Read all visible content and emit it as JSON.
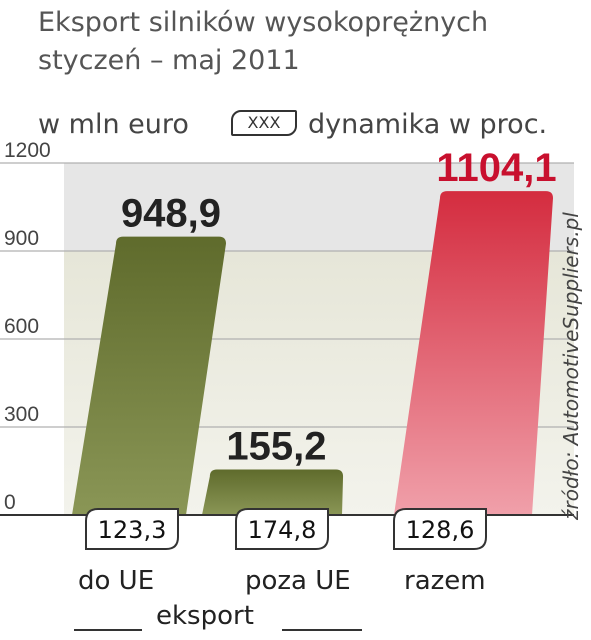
{
  "title": "Eksport silników wysokoprężnych styczeń – maj 2011",
  "unit_label": "w mln euro",
  "legend": {
    "box_text": "XXX",
    "label": "dynamika w proc."
  },
  "source": "źródło: AutomotiveSuppliers.pl",
  "group_label": "eksport",
  "colors": {
    "green": "#5f6b2c",
    "red": "#d42c3f",
    "red_label": "#c8102e"
  },
  "chart_data": {
    "type": "bar",
    "categories": [
      "do UE",
      "poza UE",
      "razem"
    ],
    "values": [
      948.9,
      155.2,
      1104.1
    ],
    "value_labels": [
      "948,9",
      "155,2",
      "1104,1"
    ],
    "dynamics": [
      "123,3",
      "174,8",
      "128,6"
    ],
    "ylim": [
      0,
      1200
    ],
    "yticks": [
      0,
      300,
      600,
      900,
      1200
    ],
    "ytick_labels": [
      "0",
      "300",
      "600",
      "900",
      "1200"
    ],
    "grid": true
  }
}
